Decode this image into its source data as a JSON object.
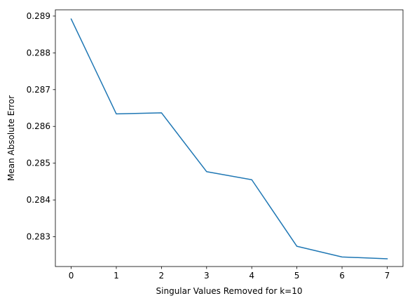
{
  "chart_data": {
    "type": "line",
    "title": "",
    "xlabel": "Singular Values Removed for k=10",
    "ylabel": "Mean Absolute Error",
    "x": [
      0,
      1,
      2,
      3,
      4,
      5,
      6,
      7
    ],
    "series": [
      {
        "values": [
          0.28892,
          0.28634,
          0.28637,
          0.28477,
          0.28455,
          0.28274,
          0.28245,
          0.2824
        ]
      }
    ],
    "xlim": [
      -0.35,
      7.35
    ],
    "ylim": [
      0.28219,
      0.28917
    ],
    "xticks": [
      0,
      1,
      2,
      3,
      4,
      5,
      6,
      7
    ],
    "xtick_labels": [
      "0",
      "1",
      "2",
      "3",
      "4",
      "5",
      "6",
      "7"
    ],
    "yticks": [
      0.283,
      0.284,
      0.285,
      0.286,
      0.287,
      0.288,
      0.289
    ],
    "ytick_labels": [
      "0.283",
      "0.284",
      "0.285",
      "0.286",
      "0.287",
      "0.288",
      "0.289"
    ],
    "line_color": "#1f77b4",
    "grid": false,
    "legend": "none"
  }
}
